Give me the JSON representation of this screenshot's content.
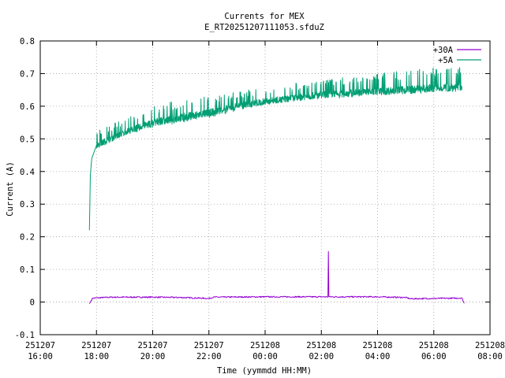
{
  "chart_data": {
    "type": "line",
    "title": "Currents for MEX",
    "subtitle": "E_RT20251207111053.sfduZ",
    "xlabel": "Time (yymmdd HH:MM)",
    "ylabel": "Current (A)",
    "xlim": [
      "2025-12-07 16:00",
      "2025-12-08 08:00"
    ],
    "ylim": [
      -0.1,
      0.8
    ],
    "x_ticks": [
      {
        "date": "251207",
        "time": "16:00"
      },
      {
        "date": "251207",
        "time": "18:00"
      },
      {
        "date": "251207",
        "time": "20:00"
      },
      {
        "date": "251207",
        "time": "22:00"
      },
      {
        "date": "251208",
        "time": "00:00"
      },
      {
        "date": "251208",
        "time": "02:00"
      },
      {
        "date": "251208",
        "time": "04:00"
      },
      {
        "date": "251208",
        "time": "06:00"
      },
      {
        "date": "251208",
        "time": "08:00"
      }
    ],
    "y_ticks": [
      "-0.1",
      "0",
      "0.1",
      "0.2",
      "0.3",
      "0.4",
      "0.5",
      "0.6",
      "0.7",
      "0.8"
    ],
    "legend_position": "top-right",
    "grid": true,
    "series": [
      {
        "name": "+30A",
        "color": "#9400d3",
        "points": [
          [
            "2025-12-07 17:45",
            -0.005
          ],
          [
            "2025-12-07 17:52",
            0.012
          ],
          [
            "2025-12-07 18:30",
            0.015
          ],
          [
            "2025-12-07 20:00",
            0.015
          ],
          [
            "2025-12-07 21:00",
            0.014
          ],
          [
            "2025-12-07 22:00",
            0.011
          ],
          [
            "2025-12-07 22:10",
            0.015
          ],
          [
            "2025-12-08 00:00",
            0.016
          ],
          [
            "2025-12-08 02:00",
            0.016
          ],
          [
            "2025-12-08 02:14",
            0.016
          ],
          [
            "2025-12-08 02:15",
            0.155
          ],
          [
            "2025-12-08 02:16",
            0.016
          ],
          [
            "2025-12-08 04:00",
            0.016
          ],
          [
            "2025-12-08 05:00",
            0.014
          ],
          [
            "2025-12-08 05:10",
            0.01
          ],
          [
            "2025-12-08 06:00",
            0.011
          ],
          [
            "2025-12-08 07:00",
            0.012
          ],
          [
            "2025-12-08 07:05",
            -0.004
          ]
        ]
      },
      {
        "name": "+5A",
        "color": "#009e73",
        "points": [
          [
            "2025-12-07 17:45",
            0.22
          ],
          [
            "2025-12-07 17:47",
            0.39
          ],
          [
            "2025-12-07 17:50",
            0.44
          ],
          [
            "2025-12-07 18:00",
            0.48
          ],
          [
            "2025-12-07 18:30",
            0.5
          ],
          [
            "2025-12-07 19:00",
            0.52
          ],
          [
            "2025-12-07 20:00",
            0.55
          ],
          [
            "2025-12-07 21:00",
            0.565
          ],
          [
            "2025-12-07 22:00",
            0.58
          ],
          [
            "2025-12-07 23:00",
            0.6
          ],
          [
            "2025-12-08 00:00",
            0.615
          ],
          [
            "2025-12-08 01:00",
            0.625
          ],
          [
            "2025-12-08 02:00",
            0.635
          ],
          [
            "2025-12-08 03:00",
            0.64
          ],
          [
            "2025-12-08 04:00",
            0.645
          ],
          [
            "2025-12-08 05:00",
            0.65
          ],
          [
            "2025-12-08 06:00",
            0.655
          ],
          [
            "2025-12-08 07:00",
            0.66
          ]
        ],
        "max_envelope": [
          [
            "2025-12-07 18:00",
            0.53
          ],
          [
            "2025-12-07 19:00",
            0.56
          ],
          [
            "2025-12-07 20:00",
            0.6
          ],
          [
            "2025-12-07 21:00",
            0.62
          ],
          [
            "2025-12-07 22:00",
            0.63
          ],
          [
            "2025-12-08 00:00",
            0.66
          ],
          [
            "2025-12-08 02:00",
            0.68
          ],
          [
            "2025-12-08 04:00",
            0.7
          ],
          [
            "2025-12-08 06:00",
            0.72
          ],
          [
            "2025-12-08 07:00",
            0.73
          ]
        ],
        "min_envelope": [
          [
            "2025-12-07 18:00",
            0.47
          ],
          [
            "2025-12-07 19:00",
            0.51
          ],
          [
            "2025-12-07 20:00",
            0.535
          ],
          [
            "2025-12-07 22:00",
            0.565
          ],
          [
            "2025-12-08 00:00",
            0.605
          ],
          [
            "2025-12-08 02:00",
            0.62
          ],
          [
            "2025-12-08 04:00",
            0.635
          ],
          [
            "2025-12-08 06:00",
            0.645
          ],
          [
            "2025-12-08 07:00",
            0.65
          ]
        ]
      }
    ]
  }
}
